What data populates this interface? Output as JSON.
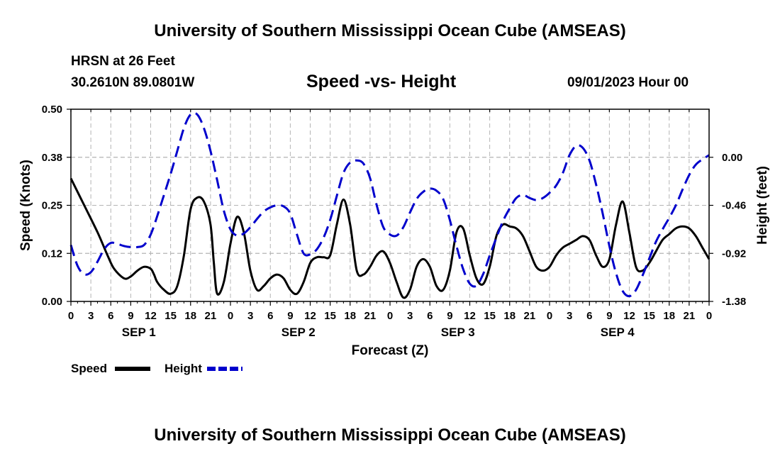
{
  "header": {
    "title": "University of Southern Mississippi Ocean Cube (AMSEAS)",
    "station": "HRSN at 26 Feet",
    "location": "30.2610N  89.0801W",
    "chart_title": "Speed -vs- Height",
    "datetime": "09/01/2023 Hour 00"
  },
  "footer": {
    "title": "University of Southern Mississippi Ocean Cube (AMSEAS)"
  },
  "legend": {
    "speed_label": "Speed",
    "height_label": "Height"
  },
  "colors": {
    "speed": "#000000",
    "height": "#0000cc",
    "grid": "#b4b4b4"
  },
  "chart_data": {
    "type": "line",
    "title": "Speed -vs- Height",
    "xlabel": "Forecast (Z)",
    "ylabel": "Speed (Knots)",
    "y2label": "Height (feet)",
    "x_range": [
      0,
      96
    ],
    "ylim": [
      0,
      0.5
    ],
    "y2lim": [
      -1.38,
      0.46
    ],
    "x_tick_labels": [
      "0",
      "3",
      "6",
      "9",
      "12",
      "15",
      "18",
      "21",
      "0",
      "3",
      "6",
      "9",
      "12",
      "15",
      "18",
      "21",
      "0",
      "3",
      "6",
      "9",
      "12",
      "15",
      "18",
      "21",
      "0",
      "3",
      "6",
      "9",
      "12",
      "15",
      "18",
      "21",
      "0"
    ],
    "y_ticks": [
      0.0,
      0.125,
      0.25,
      0.375,
      0.5
    ],
    "y_tick_labels": [
      "0.00",
      "0.12",
      "0.25",
      "0.38",
      "0.50"
    ],
    "y2_ticks": [
      -1.38,
      -0.92,
      -0.46,
      0.0
    ],
    "y2_tick_labels": [
      "-1.38",
      "-0.92",
      "-0.46",
      "0.00"
    ],
    "day_labels": [
      {
        "label": "SEP 1",
        "hour": 10
      },
      {
        "label": "SEP 2",
        "hour": 34
      },
      {
        "label": "SEP 3",
        "hour": 58
      },
      {
        "label": "SEP 4",
        "hour": 82
      }
    ],
    "series": [
      {
        "name": "Speed",
        "axis": "left",
        "style": "solid",
        "x": [
          0,
          2,
          4,
          5.5,
          6.5,
          8,
          9,
          10,
          11,
          12,
          12.5,
          13,
          14,
          15,
          16,
          17,
          18,
          19,
          20,
          21,
          21.5,
          22,
          23,
          24,
          25,
          26,
          27,
          28,
          29,
          30,
          31,
          32,
          33,
          34,
          35,
          36,
          37,
          38,
          39,
          40,
          41,
          42,
          43,
          44,
          45,
          46,
          47,
          48,
          49,
          50,
          51,
          52,
          53,
          54,
          55,
          56,
          57,
          58,
          59,
          60,
          61,
          62,
          63,
          64,
          65,
          66,
          67,
          68,
          69,
          70,
          71,
          72,
          73,
          74,
          75,
          76,
          77,
          78,
          79,
          80,
          81,
          82,
          83,
          84,
          85,
          86,
          87,
          88,
          89,
          90,
          91,
          92,
          93,
          94,
          95,
          96
        ],
        "values": [
          0.32,
          0.25,
          0.18,
          0.12,
          0.085,
          0.06,
          0.065,
          0.08,
          0.09,
          0.085,
          0.07,
          0.05,
          0.03,
          0.02,
          0.04,
          0.12,
          0.24,
          0.27,
          0.26,
          0.2,
          0.1,
          0.02,
          0.05,
          0.15,
          0.22,
          0.18,
          0.08,
          0.03,
          0.04,
          0.06,
          0.07,
          0.06,
          0.03,
          0.02,
          0.05,
          0.1,
          0.115,
          0.115,
          0.12,
          0.2,
          0.265,
          0.2,
          0.08,
          0.07,
          0.09,
          0.12,
          0.13,
          0.1,
          0.05,
          0.01,
          0.03,
          0.09,
          0.11,
          0.09,
          0.04,
          0.03,
          0.08,
          0.18,
          0.19,
          0.12,
          0.06,
          0.045,
          0.09,
          0.17,
          0.2,
          0.195,
          0.19,
          0.17,
          0.13,
          0.09,
          0.08,
          0.09,
          0.12,
          0.14,
          0.15,
          0.16,
          0.17,
          0.16,
          0.12,
          0.09,
          0.11,
          0.2,
          0.26,
          0.18,
          0.09,
          0.08,
          0.1,
          0.13,
          0.16,
          0.175,
          0.19,
          0.195,
          0.19,
          0.17,
          0.14,
          0.11
        ]
      },
      {
        "name": "Height",
        "axis": "right",
        "style": "dashed",
        "x": [
          0,
          1,
          2,
          3,
          4,
          5,
          6,
          7,
          8,
          9,
          10,
          11,
          12,
          13,
          14,
          15,
          16,
          17,
          18,
          19,
          20,
          21,
          22,
          23,
          24,
          25,
          26,
          27,
          28,
          29,
          30,
          31,
          32,
          33,
          34,
          35,
          36,
          37,
          38,
          39,
          40,
          41,
          42,
          43,
          44,
          45,
          46,
          47,
          48,
          49,
          50,
          51,
          52,
          53,
          54,
          55,
          56,
          57,
          58,
          59,
          60,
          61,
          62,
          63,
          64,
          65,
          66,
          67,
          68,
          69,
          70,
          71,
          72,
          73,
          74,
          75,
          76,
          77,
          78,
          79,
          80,
          81,
          82,
          83,
          84,
          85,
          86,
          87,
          88,
          89,
          90,
          91,
          92,
          93,
          94,
          95,
          96
        ],
        "values": [
          -0.84,
          -1.04,
          -1.12,
          -1.1,
          -1.0,
          -0.88,
          -0.82,
          -0.83,
          -0.85,
          -0.86,
          -0.86,
          -0.84,
          -0.74,
          -0.56,
          -0.36,
          -0.16,
          0.06,
          0.28,
          0.41,
          0.41,
          0.28,
          0.06,
          -0.22,
          -0.51,
          -0.69,
          -0.75,
          -0.73,
          -0.67,
          -0.59,
          -0.52,
          -0.48,
          -0.46,
          -0.47,
          -0.54,
          -0.74,
          -0.92,
          -0.93,
          -0.88,
          -0.77,
          -0.6,
          -0.37,
          -0.15,
          -0.05,
          -0.03,
          -0.06,
          -0.2,
          -0.46,
          -0.67,
          -0.74,
          -0.75,
          -0.67,
          -0.53,
          -0.4,
          -0.33,
          -0.3,
          -0.32,
          -0.4,
          -0.6,
          -0.85,
          -1.07,
          -1.21,
          -1.23,
          -1.12,
          -0.94,
          -0.77,
          -0.61,
          -0.49,
          -0.39,
          -0.36,
          -0.39,
          -0.41,
          -0.39,
          -0.34,
          -0.27,
          -0.15,
          0.02,
          0.11,
          0.09,
          -0.03,
          -0.26,
          -0.54,
          -0.85,
          -1.11,
          -1.28,
          -1.33,
          -1.27,
          -1.13,
          -0.97,
          -0.81,
          -0.69,
          -0.58,
          -0.46,
          -0.31,
          -0.17,
          -0.07,
          -0.02,
          0.02
        ]
      }
    ]
  }
}
